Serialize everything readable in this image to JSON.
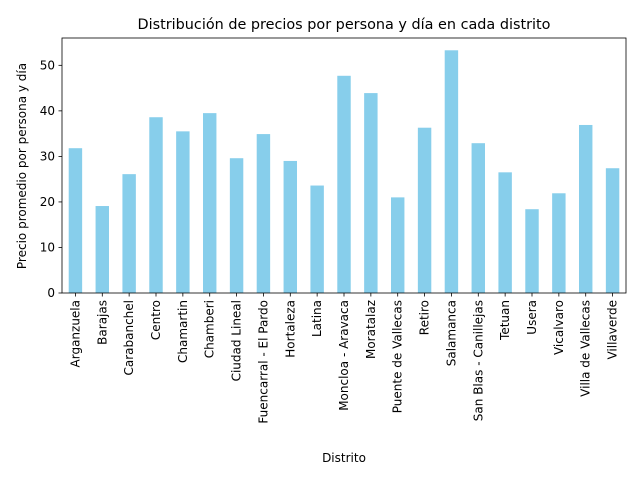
{
  "chart_data": {
    "type": "bar",
    "title": "Distribución de precios por persona y día en cada distrito",
    "xlabel": "Distrito",
    "ylabel": "Precio promedio por persona y día",
    "categories": [
      "Arganzuela",
      "Barajas",
      "Carabanchel",
      "Centro",
      "Chamartin",
      "Chamberi",
      "Ciudad Lineal",
      "Fuencarral - El Pardo",
      "Hortaleza",
      "Latina",
      "Moncloa - Aravaca",
      "Moratalaz",
      "Puente de Vallecas",
      "Retiro",
      "Salamanca",
      "San Blas - Canillejas",
      "Tetuan",
      "Usera",
      "Vicalvaro",
      "Villa de Vallecas",
      "Villaverde"
    ],
    "values": [
      31.8,
      19.1,
      26.1,
      38.6,
      35.5,
      39.5,
      29.6,
      34.9,
      29.0,
      23.6,
      47.7,
      43.9,
      21.0,
      36.3,
      53.3,
      32.9,
      26.5,
      18.4,
      21.9,
      36.9,
      27.4
    ],
    "ylim": [
      0,
      56
    ],
    "yticks": [
      0,
      10,
      20,
      30,
      40,
      50
    ],
    "bar_color": "#87ceeb",
    "grid": false,
    "legend": "none"
  }
}
